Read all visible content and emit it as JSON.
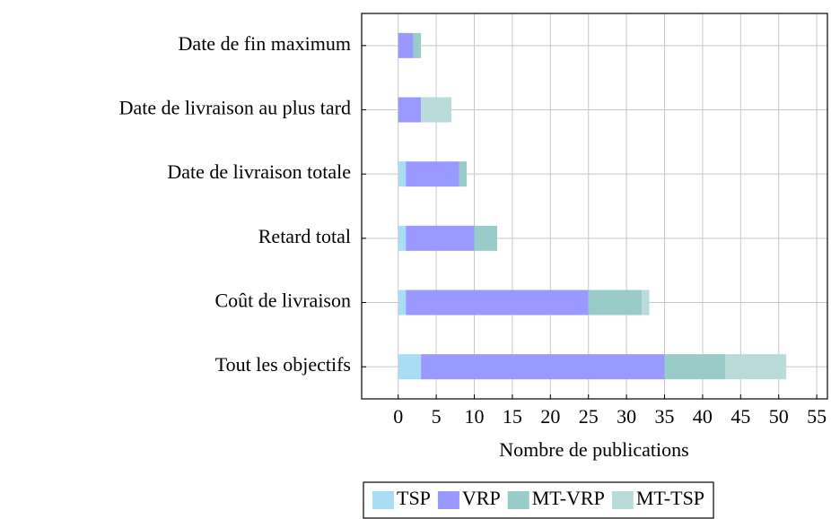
{
  "chart_data": {
    "type": "stacked_barh",
    "xlabel": "Nombre de publications",
    "categories": [
      "Date de fin maximum",
      "Date de livraison au plus tard",
      "Date de livraison totale",
      "Retard total",
      "Coût de livraison",
      "Tout les objectifs"
    ],
    "series": [
      {
        "name": "TSP",
        "color": "#a8ddf5",
        "values": [
          0,
          0,
          1,
          1,
          1,
          3
        ]
      },
      {
        "name": "VRP",
        "color": "#9999ff",
        "values": [
          2,
          3,
          7,
          9,
          24,
          32
        ]
      },
      {
        "name": "MT-VRP",
        "color": "#99ccc9",
        "values": [
          1,
          0,
          1,
          3,
          7,
          8
        ]
      },
      {
        "name": "MT-TSP",
        "color": "#b9dcda",
        "values": [
          0,
          4,
          0,
          0,
          1,
          8
        ]
      }
    ],
    "xlim": [
      -4.8,
      56.4
    ],
    "xticks": [
      0,
      5,
      10,
      15,
      20,
      25,
      30,
      35,
      40,
      45,
      50,
      55
    ],
    "grid": true,
    "legend": "bottom"
  }
}
